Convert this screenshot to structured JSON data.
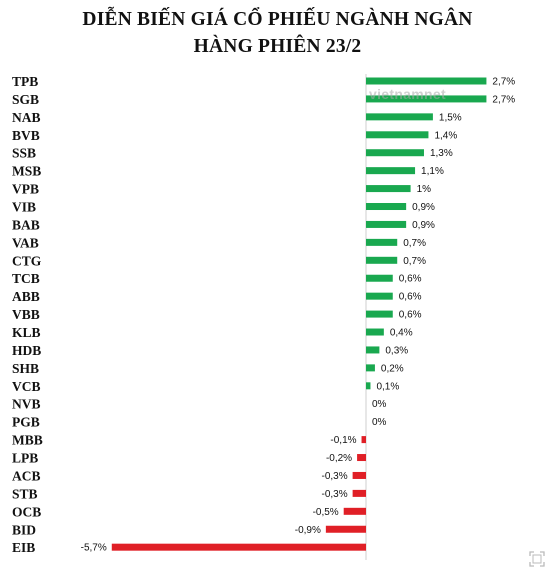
{
  "chart_data": {
    "type": "bar",
    "orientation": "horizontal",
    "title_lines": [
      "DIỄN BIẾN GIÁ CỔ PHIẾU NGÀNH NGÂN",
      "HÀNG PHIÊN 23/2"
    ],
    "categories": [
      "TPB",
      "SGB",
      "NAB",
      "BVB",
      "SSB",
      "MSB",
      "VPB",
      "VIB",
      "BAB",
      "VAB",
      "CTG",
      "TCB",
      "ABB",
      "VBB",
      "KLB",
      "HDB",
      "SHB",
      "VCB",
      "NVB",
      "PGB",
      "MBB",
      "LPB",
      "ACB",
      "STB",
      "OCB",
      "BID",
      "EIB"
    ],
    "values": [
      2.7,
      2.7,
      1.5,
      1.4,
      1.3,
      1.1,
      1.0,
      0.9,
      0.9,
      0.7,
      0.7,
      0.6,
      0.6,
      0.6,
      0.4,
      0.3,
      0.2,
      0.1,
      0,
      0,
      -0.1,
      -0.2,
      -0.3,
      -0.3,
      -0.5,
      -0.9,
      -5.7
    ],
    "labels": [
      "2,7%",
      "2,7%",
      "1,5%",
      "1,4%",
      "1,3%",
      "1,1%",
      "1%",
      "0,9%",
      "0,9%",
      "0,7%",
      "0,7%",
      "0,6%",
      "0,6%",
      "0,6%",
      "0,4%",
      "0,3%",
      "0,2%",
      "0,1%",
      "0%",
      "0%",
      "-0,1%",
      "-0,2%",
      "-0,3%",
      "-0,3%",
      "-0,5%",
      "-0,9%",
      "-5,7%"
    ],
    "positive_color": "#19a84f",
    "negative_color": "#e01f26",
    "xlim": [
      -5.7,
      2.7
    ]
  },
  "watermark": "vietnamnet"
}
